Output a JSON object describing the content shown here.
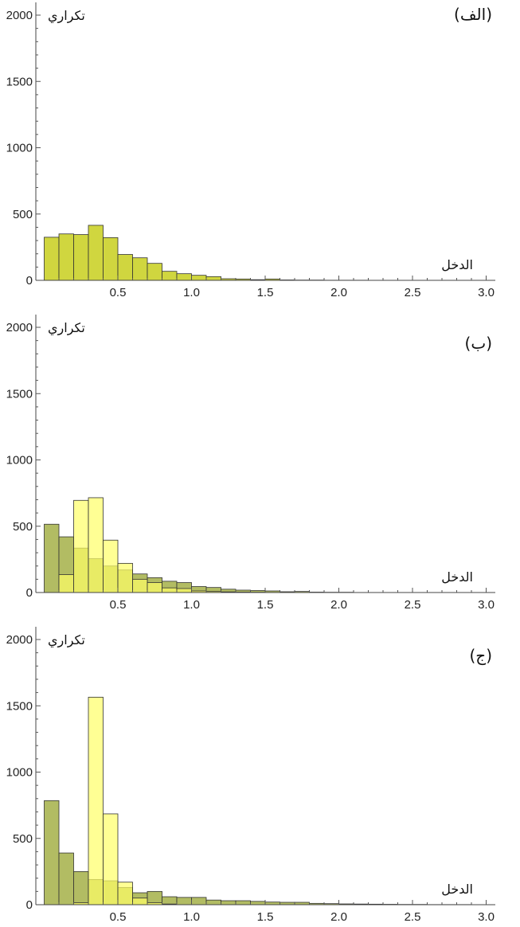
{
  "chart_data": [
    {
      "type": "bar",
      "panel_label": "(الف)",
      "xlabel": "الدخل",
      "ylabel": "تكراري",
      "xlim": [
        0,
        3.0
      ],
      "ylim": [
        0,
        2000
      ],
      "x_ticks": [
        "0.5",
        "1.0",
        "1.5",
        "2.0",
        "2.5",
        "3.0"
      ],
      "y_ticks": [
        "0",
        "500",
        "1000",
        "1500",
        "2000"
      ],
      "bin_width": 0.1,
      "series": [
        {
          "color": "#cbd12a",
          "opacity": 0.9,
          "bins": [
            {
              "x": 0.05,
              "value": 325
            },
            {
              "x": 0.15,
              "value": 350
            },
            {
              "x": 0.25,
              "value": 345
            },
            {
              "x": 0.35,
              "value": 415
            },
            {
              "x": 0.45,
              "value": 322
            },
            {
              "x": 0.55,
              "value": 195
            },
            {
              "x": 0.65,
              "value": 170
            },
            {
              "x": 0.75,
              "value": 128
            },
            {
              "x": 0.85,
              "value": 68
            },
            {
              "x": 0.95,
              "value": 50
            },
            {
              "x": 1.05,
              "value": 38
            },
            {
              "x": 1.15,
              "value": 28
            },
            {
              "x": 1.25,
              "value": 12
            },
            {
              "x": 1.35,
              "value": 10
            },
            {
              "x": 1.45,
              "value": 5
            },
            {
              "x": 1.55,
              "value": 10
            },
            {
              "x": 1.65,
              "value": 3
            },
            {
              "x": 1.75,
              "value": 2
            },
            {
              "x": 1.85,
              "value": 2
            },
            {
              "x": 1.95,
              "value": 1
            },
            {
              "x": 2.05,
              "value": 1
            },
            {
              "x": 2.15,
              "value": 1
            }
          ]
        }
      ]
    },
    {
      "type": "bar",
      "panel_label": "(ب)",
      "xlabel": "الدخل",
      "ylabel": "تكراري",
      "xlim": [
        0,
        3.0
      ],
      "ylim": [
        0,
        2000
      ],
      "x_ticks": [
        "0.5",
        "1.0",
        "1.5",
        "2.0",
        "2.5",
        "3.0"
      ],
      "y_ticks": [
        "0",
        "500",
        "1000",
        "1500",
        "2000"
      ],
      "bin_width": 0.1,
      "series": [
        {
          "color": "#a4b048",
          "opacity": 0.85,
          "bins": [
            {
              "x": 0.05,
              "value": 515
            },
            {
              "x": 0.15,
              "value": 420
            },
            {
              "x": 0.25,
              "value": 335
            },
            {
              "x": 0.35,
              "value": 255
            },
            {
              "x": 0.45,
              "value": 200
            },
            {
              "x": 0.55,
              "value": 170
            },
            {
              "x": 0.65,
              "value": 140
            },
            {
              "x": 0.75,
              "value": 112
            },
            {
              "x": 0.85,
              "value": 85
            },
            {
              "x": 0.95,
              "value": 75
            },
            {
              "x": 1.05,
              "value": 45
            },
            {
              "x": 1.15,
              "value": 38
            },
            {
              "x": 1.25,
              "value": 25
            },
            {
              "x": 1.35,
              "value": 18
            },
            {
              "x": 1.45,
              "value": 15
            },
            {
              "x": 1.55,
              "value": 12
            },
            {
              "x": 1.65,
              "value": 6
            },
            {
              "x": 1.75,
              "value": 8
            },
            {
              "x": 1.85,
              "value": 3
            },
            {
              "x": 1.95,
              "value": 2
            },
            {
              "x": 2.05,
              "value": 2
            }
          ]
        },
        {
          "color": "#ffff66",
          "opacity": 0.7,
          "bins": [
            {
              "x": 0.15,
              "value": 135
            },
            {
              "x": 0.25,
              "value": 695
            },
            {
              "x": 0.35,
              "value": 715
            },
            {
              "x": 0.45,
              "value": 395
            },
            {
              "x": 0.55,
              "value": 220
            },
            {
              "x": 0.65,
              "value": 100
            },
            {
              "x": 0.75,
              "value": 75
            },
            {
              "x": 0.85,
              "value": 35
            },
            {
              "x": 0.95,
              "value": 30
            },
            {
              "x": 1.05,
              "value": 12
            },
            {
              "x": 1.15,
              "value": 8
            },
            {
              "x": 1.25,
              "value": 5
            },
            {
              "x": 1.35,
              "value": 3
            },
            {
              "x": 1.45,
              "value": 2
            }
          ]
        }
      ]
    },
    {
      "type": "bar",
      "panel_label": "(ج)",
      "xlabel": "الدخل",
      "ylabel": "تكراري",
      "xlim": [
        0,
        3.0
      ],
      "ylim": [
        0,
        2000
      ],
      "x_ticks": [
        "0.5",
        "1.0",
        "1.5",
        "2.0",
        "2.5",
        "3.0"
      ],
      "y_ticks": [
        "0",
        "500",
        "1000",
        "1500",
        "2000"
      ],
      "bin_width": 0.1,
      "series": [
        {
          "color": "#a4b048",
          "opacity": 0.85,
          "bins": [
            {
              "x": 0.05,
              "value": 785
            },
            {
              "x": 0.15,
              "value": 390
            },
            {
              "x": 0.25,
              "value": 250
            },
            {
              "x": 0.35,
              "value": 190
            },
            {
              "x": 0.45,
              "value": 180
            },
            {
              "x": 0.55,
              "value": 130
            },
            {
              "x": 0.65,
              "value": 90
            },
            {
              "x": 0.75,
              "value": 100
            },
            {
              "x": 0.85,
              "value": 60
            },
            {
              "x": 0.95,
              "value": 55
            },
            {
              "x": 1.05,
              "value": 55
            },
            {
              "x": 1.15,
              "value": 35
            },
            {
              "x": 1.25,
              "value": 30
            },
            {
              "x": 1.35,
              "value": 30
            },
            {
              "x": 1.45,
              "value": 25
            },
            {
              "x": 1.55,
              "value": 20
            },
            {
              "x": 1.65,
              "value": 18
            },
            {
              "x": 1.75,
              "value": 18
            },
            {
              "x": 1.85,
              "value": 10
            },
            {
              "x": 1.95,
              "value": 8
            },
            {
              "x": 2.05,
              "value": 6
            },
            {
              "x": 2.15,
              "value": 5
            },
            {
              "x": 2.25,
              "value": 4
            },
            {
              "x": 2.35,
              "value": 3
            },
            {
              "x": 2.45,
              "value": 2
            },
            {
              "x": 2.55,
              "value": 2
            },
            {
              "x": 2.65,
              "value": 1
            },
            {
              "x": 2.75,
              "value": 1
            },
            {
              "x": 2.85,
              "value": 1
            }
          ]
        },
        {
          "color": "#ffff66",
          "opacity": 0.7,
          "bins": [
            {
              "x": 0.25,
              "value": 15
            },
            {
              "x": 0.35,
              "value": 1565
            },
            {
              "x": 0.45,
              "value": 685
            },
            {
              "x": 0.55,
              "value": 170
            },
            {
              "x": 0.65,
              "value": 50
            },
            {
              "x": 0.75,
              "value": 15
            },
            {
              "x": 0.85,
              "value": 5
            }
          ]
        }
      ]
    }
  ]
}
